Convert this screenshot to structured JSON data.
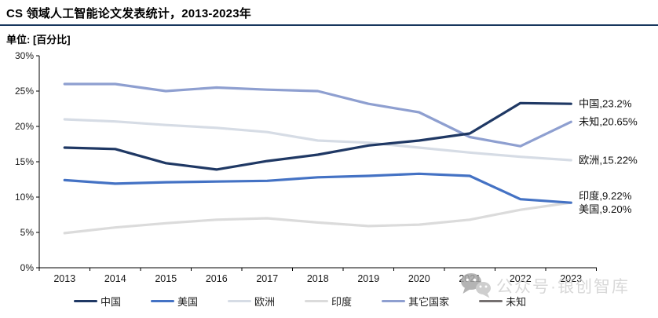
{
  "page": {
    "title": "CS 领域人工智能论文发表统计，2013-2023年",
    "unit_label": "单位: [百分比]"
  },
  "watermark": {
    "text": "公众号·银创智库"
  },
  "chart_data": {
    "type": "line",
    "title": "CS 领域人工智能论文发表统计，2013-2023年",
    "xlabel": "",
    "ylabel": "百分比",
    "ylim": [
      0,
      30
    ],
    "ytick_step": 5,
    "yticks": [
      "0%",
      "5%",
      "10%",
      "15%",
      "20%",
      "25%",
      "30%"
    ],
    "grid": false,
    "legend_position": "bottom",
    "x": [
      "2013",
      "2014",
      "2015",
      "2016",
      "2017",
      "2018",
      "2019",
      "2020",
      "2021",
      "2022",
      "2023"
    ],
    "series": [
      {
        "name": "中国",
        "color": "#1F3864",
        "values": [
          17.0,
          16.8,
          14.8,
          13.9,
          15.1,
          16.0,
          17.3,
          18.0,
          19.0,
          23.3,
          23.2
        ],
        "end_label": "中国,23.2%"
      },
      {
        "name": "美国",
        "color": "#4472C4",
        "values": [
          12.4,
          11.9,
          12.1,
          12.2,
          12.3,
          12.8,
          13.0,
          13.3,
          13.0,
          9.7,
          9.2
        ],
        "end_label": "美国,9.20%"
      },
      {
        "name": "欧洲",
        "color": "#D6DCE5",
        "values": [
          21.0,
          20.7,
          20.2,
          19.8,
          19.2,
          18.0,
          17.7,
          17.0,
          16.3,
          15.7,
          15.22
        ],
        "end_label": "欧洲,15.22%"
      },
      {
        "name": "印度",
        "color": "#DBDBDB",
        "values": [
          4.9,
          5.7,
          6.3,
          6.8,
          7.0,
          6.4,
          5.9,
          6.1,
          6.8,
          8.2,
          9.22
        ],
        "end_label": "印度,9.22%"
      },
      {
        "name": "其它国家",
        "color": "#8E9FD0",
        "values": [
          26.0,
          26.0,
          25.0,
          25.5,
          25.2,
          25.0,
          23.2,
          22.0,
          18.5,
          17.2,
          20.65
        ],
        "end_label": "未知,20.65%"
      }
    ],
    "legend": [
      {
        "label": "中国",
        "color": "#1F3864"
      },
      {
        "label": "美国",
        "color": "#4472C4"
      },
      {
        "label": "欧洲",
        "color": "#D6DCE5"
      },
      {
        "label": "印度",
        "color": "#DBDBDB"
      },
      {
        "label": "其它国家",
        "color": "#8E9FD0"
      },
      {
        "label": "未知",
        "color": "#757070"
      }
    ]
  }
}
